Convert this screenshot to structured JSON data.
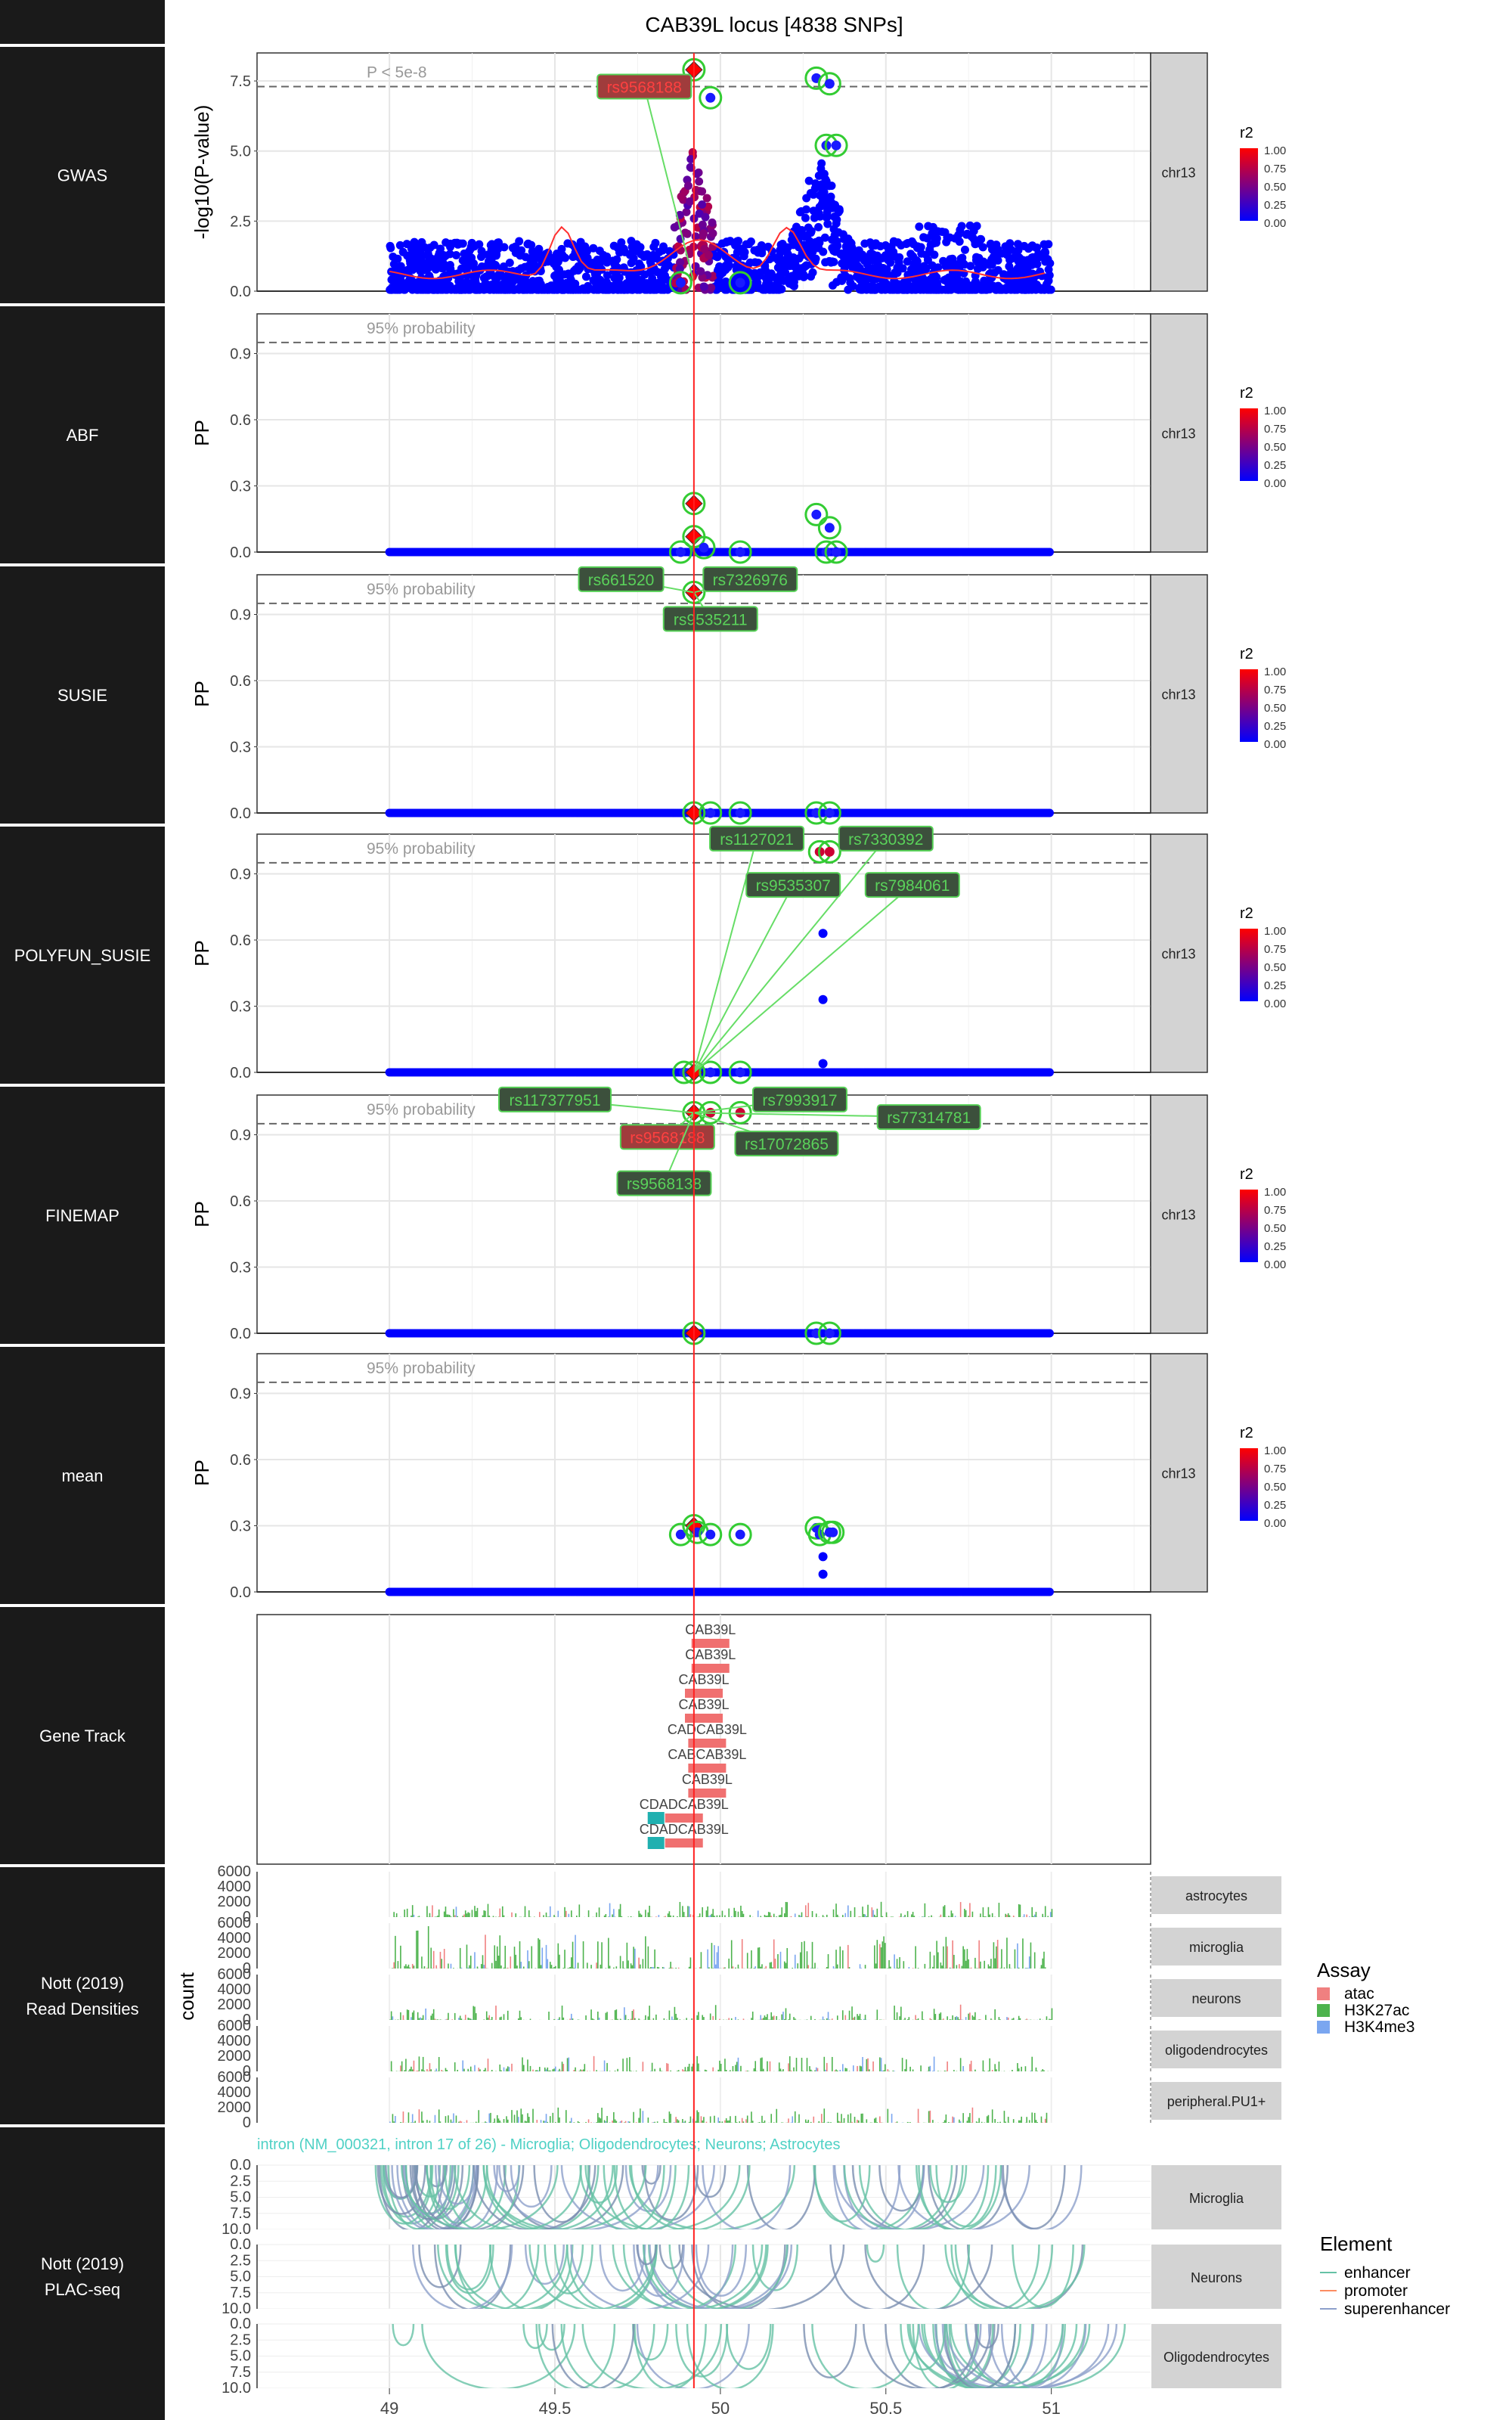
{
  "title": "CAB39L locus [4838 SNPs]",
  "x_ticks": [
    "49",
    "49.5",
    "50",
    "50.5",
    "51"
  ],
  "lead_snp_x": 49.92,
  "legend_r2": {
    "title": "r2",
    "ticks": [
      "1.00",
      "0.75",
      "0.50",
      "0.25",
      "0.00"
    ],
    "colors": [
      "#ff0000",
      "#0000ff"
    ]
  },
  "legend_assay": {
    "title": "Assay",
    "items": [
      {
        "label": "atac",
        "color": "#f08080"
      },
      {
        "label": "H3K27ac",
        "color": "#4db34d"
      },
      {
        "label": "H3K4me3",
        "color": "#7aa6f0"
      }
    ]
  },
  "legend_element": {
    "title": "Element",
    "items": [
      {
        "label": "enhancer",
        "color": "#66c2a5"
      },
      {
        "label": "promoter",
        "color": "#fc8d62"
      },
      {
        "label": "superenhancer",
        "color": "#8da0cb"
      }
    ]
  },
  "side_labels": [
    "",
    "GWAS",
    "ABF",
    "SUSIE",
    "POLYFUN_SUSIE",
    "FINEMAP",
    "mean",
    "Gene Track",
    "Nott (2019)\nRead Densities",
    "Nott (2019)\nPLAC-seq",
    ""
  ],
  "chart_data": [
    {
      "type": "scatter",
      "name": "GWAS",
      "ylabel": "-log10(P-value)",
      "yticks": [
        0,
        2.5,
        5,
        7.5
      ],
      "ylim": [
        0,
        8.5
      ],
      "threshold": {
        "value": 7.3,
        "label": "P < 5e-8"
      },
      "facet": "chr13",
      "highlights": [
        [
          49.88,
          0.3
        ],
        [
          50.06,
          0.3
        ],
        [
          49.92,
          7.9
        ],
        [
          49.97,
          6.9
        ],
        [
          50.29,
          7.6
        ],
        [
          50.33,
          7.4
        ],
        [
          50.32,
          5.2
        ],
        [
          50.35,
          5.2
        ]
      ],
      "labels": [
        {
          "text": "rs9568188",
          "x": 49.77,
          "y": 7.3,
          "fill": "#a03c3c",
          "color": "#ff4040"
        }
      ]
    },
    {
      "type": "scatter",
      "name": "ABF",
      "ylabel": "PP",
      "yticks": [
        0.0,
        0.3,
        0.6,
        0.9
      ],
      "ylim": [
        0,
        1.08
      ],
      "threshold": {
        "value": 0.95,
        "label": "95% probability"
      },
      "facet": "chr13",
      "highlights": [
        [
          49.88,
          0.0
        ],
        [
          49.92,
          0.22
        ],
        [
          49.92,
          0.07
        ],
        [
          49.95,
          0.02
        ],
        [
          50.06,
          0.0
        ],
        [
          50.29,
          0.17
        ],
        [
          50.32,
          0.0
        ],
        [
          50.33,
          0.11
        ],
        [
          50.35,
          0.0
        ]
      ],
      "labels": []
    },
    {
      "type": "scatter",
      "name": "SUSIE",
      "ylabel": "PP",
      "yticks": [
        0.0,
        0.3,
        0.6,
        0.9
      ],
      "ylim": [
        0,
        1.08
      ],
      "threshold": {
        "value": 0.95,
        "label": "95% probability"
      },
      "facet": "chr13",
      "highlights": [
        [
          49.92,
          1.0
        ],
        [
          49.92,
          0.0
        ],
        [
          49.97,
          0.0
        ],
        [
          50.06,
          0.0
        ],
        [
          50.29,
          0.0
        ],
        [
          50.33,
          0.0
        ]
      ],
      "labels": [
        {
          "text": "rs661520",
          "x": 49.7,
          "y": 1.06,
          "fill": "#3c503c",
          "color": "#5ad25a"
        },
        {
          "text": "rs7326976",
          "x": 50.09,
          "y": 1.06,
          "fill": "#3c503c",
          "color": "#5ad25a"
        },
        {
          "text": "rs9535211",
          "x": 49.97,
          "y": 0.88,
          "fill": "#3c503c",
          "color": "#5ad25a"
        }
      ]
    },
    {
      "type": "scatter",
      "name": "POLYFUN_SUSIE",
      "ylabel": "PP",
      "yticks": [
        0.0,
        0.3,
        0.6,
        0.9
      ],
      "ylim": [
        0,
        1.08
      ],
      "threshold": {
        "value": 0.95,
        "label": "95% probability"
      },
      "facet": "chr13",
      "highlights": [
        [
          49.89,
          0.0
        ],
        [
          49.92,
          0.0
        ],
        [
          49.97,
          0.0
        ],
        [
          50.06,
          0.0
        ],
        [
          50.3,
          1.0
        ],
        [
          50.33,
          1.0
        ]
      ],
      "extra_points": [
        [
          50.31,
          0.63
        ],
        [
          50.31,
          0.33
        ],
        [
          50.31,
          0.04
        ]
      ],
      "labels": [
        {
          "text": "rs1127021",
          "x": 50.11,
          "y": 1.06,
          "fill": "#3c503c",
          "color": "#5ad25a"
        },
        {
          "text": "rs7330392",
          "x": 50.5,
          "y": 1.06,
          "fill": "#3c503c",
          "color": "#5ad25a"
        },
        {
          "text": "rs9535307",
          "x": 50.22,
          "y": 0.85,
          "fill": "#3c503c",
          "color": "#5ad25a"
        },
        {
          "text": "rs7984061",
          "x": 50.58,
          "y": 0.85,
          "fill": "#3c503c",
          "color": "#5ad25a"
        }
      ]
    },
    {
      "type": "scatter",
      "name": "FINEMAP",
      "ylabel": "PP",
      "yticks": [
        0.0,
        0.3,
        0.6,
        0.9
      ],
      "ylim": [
        0,
        1.08
      ],
      "threshold": {
        "value": 0.95,
        "label": "95% probability"
      },
      "facet": "chr13",
      "highlights": [
        [
          49.92,
          1.0
        ],
        [
          49.97,
          1.0
        ],
        [
          50.06,
          1.0
        ],
        [
          49.92,
          0.0
        ],
        [
          50.29,
          0.0
        ],
        [
          50.33,
          0.0
        ]
      ],
      "labels": [
        {
          "text": "rs117377951",
          "x": 49.5,
          "y": 1.06,
          "fill": "#3c503c",
          "color": "#5ad25a"
        },
        {
          "text": "rs7993917",
          "x": 50.24,
          "y": 1.06,
          "fill": "#3c503c",
          "color": "#5ad25a"
        },
        {
          "text": "rs77314781",
          "x": 50.63,
          "y": 0.98,
          "fill": "#3c503c",
          "color": "#5ad25a"
        },
        {
          "text": "rs9568188",
          "x": 49.84,
          "y": 0.89,
          "fill": "#a03c3c",
          "color": "#ff4040"
        },
        {
          "text": "rs17072865",
          "x": 50.2,
          "y": 0.86,
          "fill": "#3c503c",
          "color": "#5ad25a"
        },
        {
          "text": "rs9568138",
          "x": 49.83,
          "y": 0.68,
          "fill": "#3c503c",
          "color": "#5ad25a"
        }
      ]
    },
    {
      "type": "scatter",
      "name": "mean",
      "ylabel": "PP",
      "yticks": [
        0.0,
        0.3,
        0.6,
        0.9
      ],
      "ylim": [
        0,
        1.08
      ],
      "threshold": {
        "value": 0.95,
        "label": "95% probability"
      },
      "facet": "chr13",
      "highlights": [
        [
          49.88,
          0.26
        ],
        [
          49.92,
          0.3
        ],
        [
          49.93,
          0.27
        ],
        [
          49.97,
          0.26
        ],
        [
          50.06,
          0.26
        ],
        [
          50.29,
          0.29
        ],
        [
          50.3,
          0.26
        ],
        [
          50.33,
          0.27
        ],
        [
          50.34,
          0.27
        ]
      ],
      "extra_points": [
        [
          50.31,
          0.16
        ],
        [
          50.31,
          0.08
        ]
      ],
      "labels": []
    },
    {
      "type": "gene_track",
      "name": "Gene Track",
      "genes": [
        {
          "label": "CAB39L",
          "x": 49.97,
          "row": 0
        },
        {
          "label": "CAB39L",
          "x": 49.97,
          "row": 1
        },
        {
          "label": "CAB39L",
          "x": 49.95,
          "row": 2
        },
        {
          "label": "CAB39L",
          "x": 49.95,
          "row": 3
        },
        {
          "label": "CADCAB39L",
          "x": 49.96,
          "row": 4
        },
        {
          "label": "CABCAB39L",
          "x": 49.96,
          "row": 5
        },
        {
          "label": "CAB39L",
          "x": 49.96,
          "row": 6
        },
        {
          "label": "CDADCAB39L",
          "x": 49.89,
          "row": 7
        },
        {
          "label": "CDADCAB39L",
          "x": 49.89,
          "row": 8
        }
      ]
    },
    {
      "type": "area",
      "name": "Read Densities",
      "ylabel": "count",
      "yticks": [
        0,
        2000,
        4000,
        6000
      ],
      "ylim": [
        0,
        6000
      ],
      "tracks": [
        "astrocytes",
        "microglia",
        "neurons",
        "oligodendrocytes",
        "peripheral.PU1+"
      ]
    },
    {
      "type": "arcs",
      "name": "PLAC-seq",
      "yticks": [
        0.0,
        2.5,
        5.0,
        7.5,
        10.0
      ],
      "ylim": [
        0,
        10
      ],
      "annotation": "intron (NM_000321, intron 17 of 26) - Microglia; Oligodendrocytes; Neurons; Astrocytes",
      "tracks": [
        "Microglia",
        "Neurons",
        "Oligodendrocytes"
      ]
    }
  ]
}
